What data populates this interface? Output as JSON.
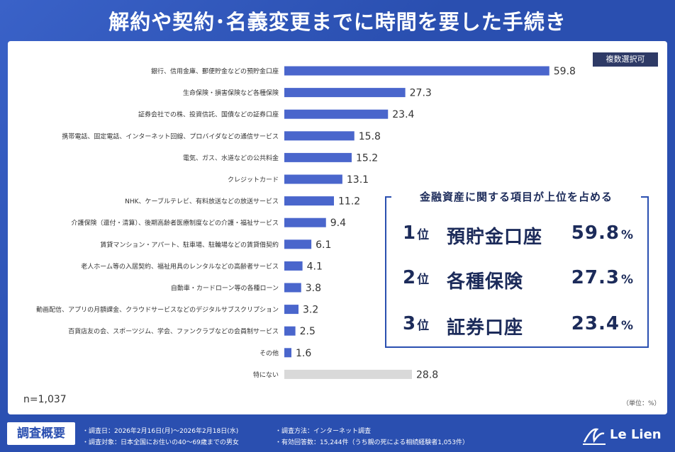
{
  "title": "解約や契約･名義変更までに時間を要した手続き",
  "badge": "複数選択可",
  "n_label": "n=1,037",
  "unit_label": "（単位：%）",
  "callout": {
    "heading": "金融資産に関する項目が上位を占める",
    "ranks": [
      {
        "num": "1",
        "suffix": "位",
        "name": "預貯金口座",
        "value": "59.8",
        "pct": "%"
      },
      {
        "num": "2",
        "suffix": "位",
        "name": "各種保険",
        "value": "27.3",
        "pct": "%"
      },
      {
        "num": "3",
        "suffix": "位",
        "name": "証券口座",
        "value": "23.4",
        "pct": "%"
      }
    ]
  },
  "footer": {
    "box_label": "調査概要",
    "date": "・調査日：2026年2月16日(月)〜2026年2月18日(水)",
    "method": "・調査方法：インターネット調査",
    "target": "・調査対象：日本全国にお住いの40〜69歳までの男女",
    "responses": "・有効回答数：15,244件（うち親の死による相続経験者1,053件）"
  },
  "logo": "Le Lien",
  "colors": {
    "bar": "#4a66cc",
    "bar_none": "#d9d9d9",
    "accent": "#2a4fb0"
  },
  "chart_data": {
    "type": "bar",
    "orientation": "horizontal",
    "categories": [
      "銀行、信用金庫、郵便貯金などの預貯金口座",
      "生命保険・損害保険など各種保険",
      "証券会社での株、投資信託、国債などの証券口座",
      "携帯電話、固定電話、インターネット回線、プロバイダなどの通信サービス",
      "電気、ガス、水道などの公共料金",
      "クレジットカード",
      "NHK、ケーブルテレビ、有料放送などの放送サービス",
      "介護保険（還付・清算）、後期高齢者医療制度などの介護・福祉サービス",
      "賃貸マンション・アパート、駐車場、駐輪場などの賃貸借契約",
      "老人ホーム等の入居契約、福祉用具のレンタルなどの高齢者サービス",
      "自動車・カードローン等の各種ローン",
      "動画配信、アプリの月額課金、クラウドサービスなどのデジタルサブスクリプション",
      "百貨店友の会、スポーツジム、学会、ファンクラブなどの会員制サービス",
      "その他",
      "特にない"
    ],
    "values": [
      59.8,
      27.3,
      23.4,
      15.8,
      15.2,
      13.1,
      11.2,
      9.4,
      6.1,
      4.1,
      3.8,
      3.2,
      2.5,
      1.6,
      28.8
    ],
    "value_labels": [
      "59.8",
      "27.3",
      "23.4",
      "15.8",
      "15.2",
      "13.1",
      "11.2",
      "9.4",
      "6.1",
      "4.1",
      "3.8",
      "3.2",
      "2.5",
      "1.6",
      "28.8"
    ],
    "highlight_last_gray": true,
    "xlim": [
      0,
      60
    ],
    "grid": false,
    "title": "",
    "xlabel": "",
    "ylabel": ""
  }
}
